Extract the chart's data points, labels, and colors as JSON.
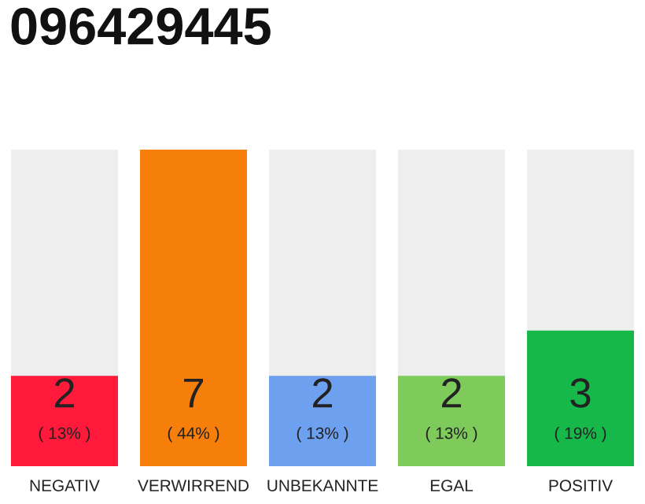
{
  "chart_data": {
    "type": "bar",
    "title": "096429445",
    "categories": [
      "NEGATIV",
      "VERWIRREND",
      "UNBEKANNTE",
      "EGAL",
      "POSITIV"
    ],
    "values": [
      2,
      7,
      2,
      2,
      3
    ],
    "colors": [
      "#ff1a3c",
      "#f57f0a",
      "#6ea0f0",
      "#7ecb5c",
      "#16b84a"
    ],
    "value_labels": [
      "2\n( 13% )",
      "7\n( 44% )",
      "2\n( 13% )",
      "2\n( 13% )",
      "3\n( 19% )"
    ],
    "grid": false,
    "legend": false,
    "tick_labels": "x"
  }
}
